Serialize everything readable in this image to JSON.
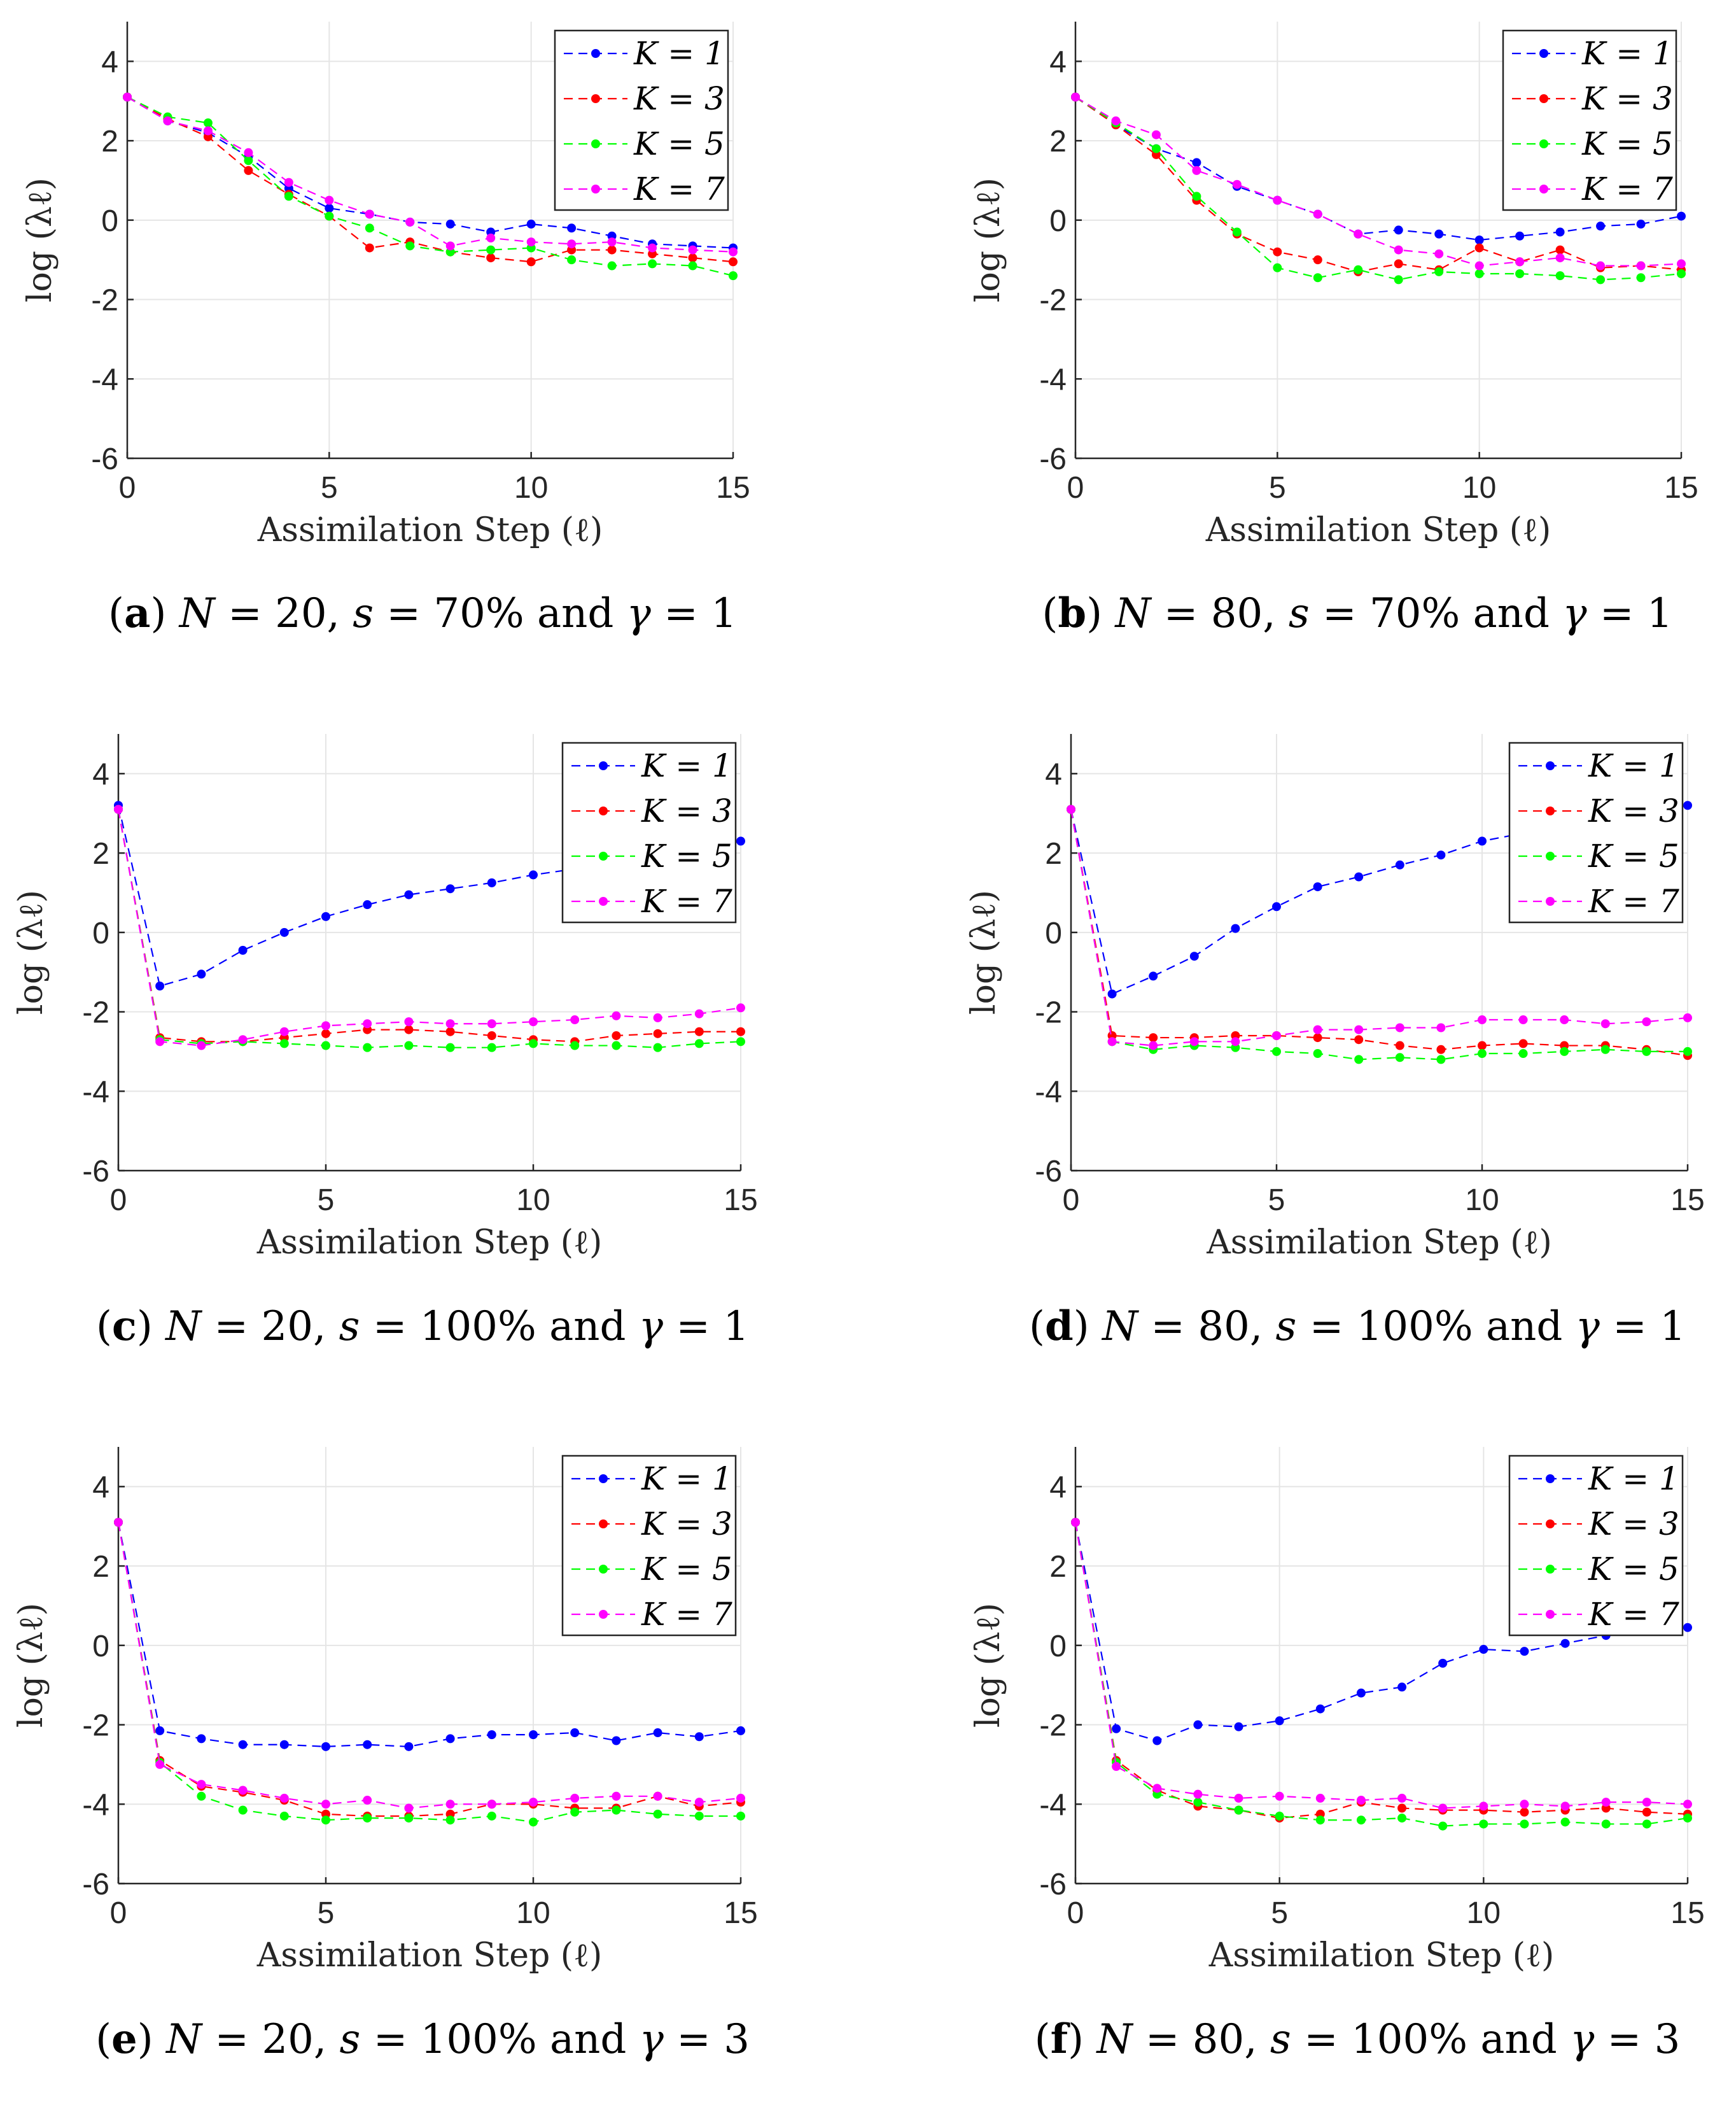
{
  "figure": {
    "panels": [
      {
        "label": "a",
        "caption": {
          "open": "(",
          "letter": "a",
          "close": ") ",
          "N": "20",
          "s": "70%",
          "gamma": "1"
        },
        "chart_data": {
          "type": "line",
          "xlabel": "Assimilation Step (ℓ)",
          "ylabel": "log (λℓ)",
          "xlim": [
            0,
            15
          ],
          "ylim": [
            -6,
            5
          ],
          "xticks": [
            "0",
            "5",
            "10",
            "15"
          ],
          "yticks": [
            "-6",
            "-4",
            "-2",
            "0",
            "2",
            "4"
          ],
          "grid": true,
          "legend_position": "top-right",
          "x": [
            0,
            1,
            2,
            3,
            4,
            5,
            6,
            7,
            8,
            9,
            10,
            11,
            12,
            13,
            14,
            15
          ],
          "series": [
            {
              "name": "K = 1",
              "color": "#0000ff",
              "values": [
                3.1,
                2.5,
                2.2,
                1.6,
                0.8,
                0.3,
                0.15,
                -0.05,
                -0.1,
                -0.3,
                -0.1,
                -0.2,
                -0.4,
                -0.6,
                -0.65,
                -0.7
              ]
            },
            {
              "name": "K = 3",
              "color": "#ff0000",
              "values": [
                3.1,
                2.55,
                2.1,
                1.25,
                0.65,
                0.1,
                -0.7,
                -0.55,
                -0.8,
                -0.95,
                -1.05,
                -0.75,
                -0.75,
                -0.85,
                -0.95,
                -1.05
              ]
            },
            {
              "name": "K = 5",
              "color": "#00ff00",
              "values": [
                3.1,
                2.6,
                2.45,
                1.5,
                0.6,
                0.1,
                -0.2,
                -0.65,
                -0.8,
                -0.75,
                -0.7,
                -1.0,
                -1.15,
                -1.1,
                -1.15,
                -1.4
              ]
            },
            {
              "name": "K = 7",
              "color": "#ff00ff",
              "values": [
                3.1,
                2.5,
                2.25,
                1.7,
                0.95,
                0.5,
                0.15,
                -0.05,
                -0.65,
                -0.45,
                -0.55,
                -0.6,
                -0.55,
                -0.7,
                -0.75,
                -0.8
              ]
            }
          ]
        }
      },
      {
        "label": "b",
        "caption": {
          "open": "(",
          "letter": "b",
          "close": ") ",
          "N": "80",
          "s": "70%",
          "gamma": "1"
        },
        "chart_data": {
          "type": "line",
          "xlabel": "Assimilation Step (ℓ)",
          "ylabel": "log (λℓ)",
          "xlim": [
            0,
            15
          ],
          "ylim": [
            -6,
            5
          ],
          "xticks": [
            "0",
            "5",
            "10",
            "15"
          ],
          "yticks": [
            "-6",
            "-4",
            "-2",
            "0",
            "2",
            "4"
          ],
          "grid": true,
          "legend_position": "top-right",
          "x": [
            0,
            1,
            2,
            3,
            4,
            5,
            6,
            7,
            8,
            9,
            10,
            11,
            12,
            13,
            14,
            15
          ],
          "series": [
            {
              "name": "K = 1",
              "color": "#0000ff",
              "values": [
                3.1,
                2.4,
                1.8,
                1.45,
                0.85,
                0.5,
                0.15,
                -0.35,
                -0.25,
                -0.35,
                -0.5,
                -0.4,
                -0.3,
                -0.15,
                -0.1,
                0.1
              ]
            },
            {
              "name": "K = 3",
              "color": "#ff0000",
              "values": [
                3.1,
                2.4,
                1.65,
                0.5,
                -0.35,
                -0.8,
                -1.0,
                -1.3,
                -1.1,
                -1.25,
                -0.7,
                -1.05,
                -0.75,
                -1.2,
                -1.15,
                -1.25
              ]
            },
            {
              "name": "K = 5",
              "color": "#00ff00",
              "values": [
                3.1,
                2.45,
                1.8,
                0.6,
                -0.3,
                -1.2,
                -1.45,
                -1.25,
                -1.5,
                -1.3,
                -1.35,
                -1.35,
                -1.4,
                -1.5,
                -1.45,
                -1.35
              ]
            },
            {
              "name": "K = 7",
              "color": "#ff00ff",
              "values": [
                3.1,
                2.5,
                2.15,
                1.25,
                0.9,
                0.5,
                0.15,
                -0.35,
                -0.75,
                -0.85,
                -1.15,
                -1.05,
                -0.95,
                -1.15,
                -1.15,
                -1.1
              ]
            }
          ]
        }
      },
      {
        "label": "c",
        "caption": {
          "open": "(",
          "letter": "c",
          "close": ") ",
          "N": "20",
          "s": "100%",
          "gamma": "1"
        },
        "chart_data": {
          "type": "line",
          "xlabel": "Assimilation Step (ℓ)",
          "ylabel": "log (λℓ)",
          "xlim": [
            0,
            15
          ],
          "ylim": [
            -6,
            5
          ],
          "xticks": [
            "0",
            "5",
            "10",
            "15"
          ],
          "yticks": [
            "-6",
            "-4",
            "-2",
            "0",
            "2",
            "4"
          ],
          "grid": true,
          "legend_position": "top-right",
          "x": [
            0,
            1,
            2,
            3,
            4,
            5,
            6,
            7,
            8,
            9,
            10,
            11,
            12,
            13,
            14,
            15
          ],
          "series": [
            {
              "name": "K = 1",
              "color": "#0000ff",
              "values": [
                3.2,
                -1.35,
                -1.05,
                -0.45,
                0.0,
                0.4,
                0.7,
                0.95,
                1.1,
                1.25,
                1.45,
                1.6,
                1.8,
                1.95,
                2.1,
                2.3
              ]
            },
            {
              "name": "K = 3",
              "color": "#ff0000",
              "values": [
                3.1,
                -2.65,
                -2.75,
                -2.75,
                -2.65,
                -2.55,
                -2.45,
                -2.45,
                -2.5,
                -2.6,
                -2.7,
                -2.75,
                -2.6,
                -2.55,
                -2.5,
                -2.5
              ]
            },
            {
              "name": "K = 5",
              "color": "#00ff00",
              "values": [
                3.1,
                -2.7,
                -2.8,
                -2.75,
                -2.8,
                -2.85,
                -2.9,
                -2.85,
                -2.9,
                -2.9,
                -2.8,
                -2.85,
                -2.85,
                -2.9,
                -2.8,
                -2.75
              ]
            },
            {
              "name": "K = 7",
              "color": "#ff00ff",
              "values": [
                3.1,
                -2.75,
                -2.85,
                -2.7,
                -2.5,
                -2.35,
                -2.3,
                -2.25,
                -2.3,
                -2.3,
                -2.25,
                -2.2,
                -2.1,
                -2.15,
                -2.05,
                -1.9
              ]
            }
          ]
        }
      },
      {
        "label": "d",
        "caption": {
          "open": "(",
          "letter": "d",
          "close": ") ",
          "N": "80",
          "s": "100%",
          "gamma": "1"
        },
        "chart_data": {
          "type": "line",
          "xlabel": "Assimilation Step (ℓ)",
          "ylabel": "log (λℓ)",
          "xlim": [
            0,
            15
          ],
          "ylim": [
            -6,
            5
          ],
          "xticks": [
            "0",
            "5",
            "10",
            "15"
          ],
          "yticks": [
            "-6",
            "-4",
            "-2",
            "0",
            "2",
            "4"
          ],
          "grid": true,
          "legend_position": "top-right",
          "x": [
            0,
            1,
            2,
            3,
            4,
            5,
            6,
            7,
            8,
            9,
            10,
            11,
            12,
            13,
            14,
            15
          ],
          "series": [
            {
              "name": "K = 1",
              "color": "#0000ff",
              "values": [
                3.1,
                -1.55,
                -1.1,
                -0.6,
                0.1,
                0.65,
                1.15,
                1.4,
                1.7,
                1.95,
                2.3,
                2.5,
                2.7,
                2.85,
                3.05,
                3.2
              ]
            },
            {
              "name": "K = 3",
              "color": "#ff0000",
              "values": [
                3.1,
                -2.6,
                -2.65,
                -2.65,
                -2.6,
                -2.6,
                -2.65,
                -2.7,
                -2.85,
                -2.95,
                -2.85,
                -2.8,
                -2.85,
                -2.85,
                -2.95,
                -3.1
              ]
            },
            {
              "name": "K = 5",
              "color": "#00ff00",
              "values": [
                3.1,
                -2.75,
                -2.95,
                -2.85,
                -2.9,
                -3.0,
                -3.05,
                -3.2,
                -3.15,
                -3.2,
                -3.05,
                -3.05,
                -3.0,
                -2.95,
                -3.0,
                -3.0
              ]
            },
            {
              "name": "K = 7",
              "color": "#ff00ff",
              "values": [
                3.1,
                -2.75,
                -2.85,
                -2.75,
                -2.75,
                -2.6,
                -2.45,
                -2.45,
                -2.4,
                -2.4,
                -2.2,
                -2.2,
                -2.2,
                -2.3,
                -2.25,
                -2.15
              ]
            }
          ]
        }
      },
      {
        "label": "e",
        "caption": {
          "open": "(",
          "letter": "e",
          "close": ") ",
          "N": "20",
          "s": "100%",
          "gamma": "3"
        },
        "chart_data": {
          "type": "line",
          "xlabel": "Assimilation Step (ℓ)",
          "ylabel": "log (λℓ)",
          "xlim": [
            0,
            15
          ],
          "ylim": [
            -6,
            5
          ],
          "xticks": [
            "0",
            "5",
            "10",
            "15"
          ],
          "yticks": [
            "-6",
            "-4",
            "-2",
            "0",
            "2",
            "4"
          ],
          "grid": true,
          "legend_position": "top-right",
          "x": [
            0,
            1,
            2,
            3,
            4,
            5,
            6,
            7,
            8,
            9,
            10,
            11,
            12,
            13,
            14,
            15
          ],
          "series": [
            {
              "name": "K = 1",
              "color": "#0000ff",
              "values": [
                3.1,
                -2.15,
                -2.35,
                -2.5,
                -2.5,
                -2.55,
                -2.5,
                -2.55,
                -2.35,
                -2.25,
                -2.25,
                -2.2,
                -2.4,
                -2.2,
                -2.3,
                -2.15
              ]
            },
            {
              "name": "K = 3",
              "color": "#ff0000",
              "values": [
                3.1,
                -2.9,
                -3.55,
                -3.7,
                -3.9,
                -4.25,
                -4.3,
                -4.3,
                -4.25,
                -4.0,
                -4.0,
                -4.1,
                -4.1,
                -3.8,
                -4.05,
                -3.95
              ]
            },
            {
              "name": "K = 5",
              "color": "#00ff00",
              "values": [
                3.1,
                -2.95,
                -3.8,
                -4.15,
                -4.3,
                -4.4,
                -4.35,
                -4.35,
                -4.4,
                -4.3,
                -4.45,
                -4.2,
                -4.15,
                -4.25,
                -4.3,
                -4.3
              ]
            },
            {
              "name": "K = 7",
              "color": "#ff00ff",
              "values": [
                3.1,
                -3.0,
                -3.5,
                -3.65,
                -3.85,
                -4.0,
                -3.9,
                -4.1,
                -4.0,
                -4.0,
                -3.95,
                -3.85,
                -3.8,
                -3.8,
                -3.95,
                -3.85
              ]
            }
          ]
        }
      },
      {
        "label": "f",
        "caption": {
          "open": "(",
          "letter": "f",
          "close": ") ",
          "N": "80",
          "s": "100%",
          "gamma": "3"
        },
        "chart_data": {
          "type": "line",
          "xlabel": "Assimilation Step (ℓ)",
          "ylabel": "log (λℓ)",
          "xlim": [
            0,
            15
          ],
          "ylim": [
            -6,
            5
          ],
          "xticks": [
            "0",
            "5",
            "10",
            "15"
          ],
          "yticks": [
            "-6",
            "-4",
            "-2",
            "0",
            "2",
            "4"
          ],
          "grid": true,
          "legend_position": "top-right",
          "x": [
            0,
            1,
            2,
            3,
            4,
            5,
            6,
            7,
            8,
            9,
            10,
            11,
            12,
            13,
            14,
            15
          ],
          "series": [
            {
              "name": "K = 1",
              "color": "#0000ff",
              "values": [
                3.1,
                -2.1,
                -2.4,
                -2.0,
                -2.05,
                -1.9,
                -1.6,
                -1.2,
                -1.05,
                -0.45,
                -0.1,
                -0.15,
                0.05,
                0.25,
                0.35,
                0.45
              ]
            },
            {
              "name": "K = 3",
              "color": "#ff0000",
              "values": [
                3.1,
                -2.9,
                -3.65,
                -4.05,
                -4.15,
                -4.35,
                -4.25,
                -3.95,
                -4.1,
                -4.15,
                -4.15,
                -4.2,
                -4.15,
                -4.1,
                -4.2,
                -4.25
              ]
            },
            {
              "name": "K = 5",
              "color": "#00ff00",
              "values": [
                3.1,
                -2.95,
                -3.75,
                -3.95,
                -4.15,
                -4.3,
                -4.4,
                -4.4,
                -4.35,
                -4.55,
                -4.5,
                -4.5,
                -4.45,
                -4.5,
                -4.5,
                -4.35
              ]
            },
            {
              "name": "K = 7",
              "color": "#ff00ff",
              "values": [
                3.1,
                -3.05,
                -3.6,
                -3.75,
                -3.85,
                -3.8,
                -3.85,
                -3.9,
                -3.85,
                -4.1,
                -4.05,
                -4.0,
                -4.05,
                -3.95,
                -3.95,
                -4.0
              ]
            }
          ]
        }
      }
    ]
  }
}
